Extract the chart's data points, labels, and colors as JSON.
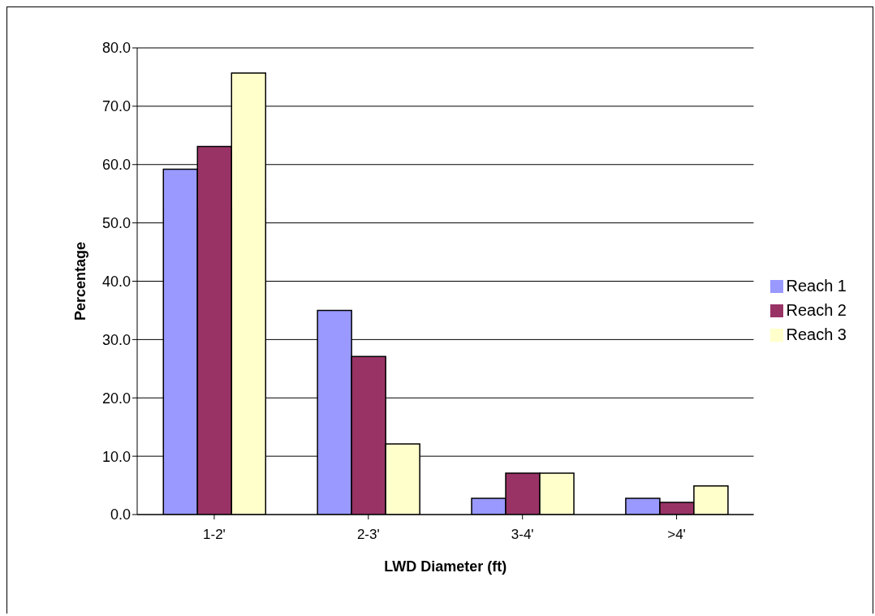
{
  "chart_data": {
    "type": "bar",
    "xlabel": "LWD Diameter (ft)",
    "ylabel": "Percentage",
    "categories": [
      "1-2'",
      "2-3'",
      "3-4'",
      ">4'"
    ],
    "series": [
      {
        "name": "Reach 1",
        "color": "#9999ff",
        "values": [
          59.2,
          35.0,
          2.8,
          2.8
        ]
      },
      {
        "name": "Reach 2",
        "color": "#993366",
        "values": [
          63.1,
          27.1,
          7.1,
          2.1
        ]
      },
      {
        "name": "Reach 3",
        "color": "#ffffcc",
        "values": [
          75.7,
          12.1,
          7.1,
          4.9
        ]
      }
    ],
    "ylim": [
      0,
      80
    ],
    "yticks": [
      {
        "value": 0,
        "label": "0.0"
      },
      {
        "value": 10,
        "label": "10.0"
      },
      {
        "value": 20,
        "label": "20.0"
      },
      {
        "value": 30,
        "label": "30.0"
      },
      {
        "value": 40,
        "label": "40.0"
      },
      {
        "value": 50,
        "label": "50.0"
      },
      {
        "value": 60,
        "label": "60.0"
      },
      {
        "value": 70,
        "label": "70.0"
      },
      {
        "value": 80,
        "label": "80.0"
      }
    ],
    "grid": "y",
    "legend": "right"
  }
}
